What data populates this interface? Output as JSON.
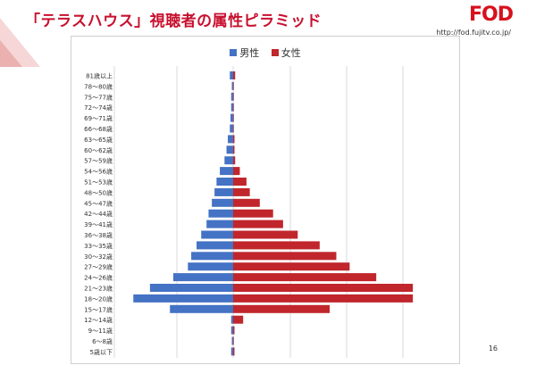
{
  "slide": {
    "title": "「テラスハウス」視聴者の属性ピラミッド",
    "logo_text": "FOD",
    "logo_url": "http://fod.fujitv.co.jp/",
    "page_number": "16"
  },
  "colors": {
    "male": "#4472c4",
    "female": "#c0262b",
    "title": "#c8102e",
    "gridline": "#d9d9d9"
  },
  "chart_data": {
    "type": "bar",
    "orientation": "horizontal-pyramid",
    "categories": [
      "81歳以上",
      "78〜80歳",
      "75〜77歳",
      "72〜74歳",
      "69〜71歳",
      "66〜68歳",
      "63〜65歳",
      "60〜62歳",
      "57〜59歳",
      "54〜56歳",
      "51〜53歳",
      "48〜50歳",
      "45〜47歳",
      "42〜44歳",
      "39〜41歳",
      "36〜38歳",
      "33〜35歳",
      "30〜32歳",
      "27〜29歳",
      "24〜26歳",
      "21〜23歳",
      "18〜20歳",
      "15〜17歳",
      "12〜14歳",
      "9〜11歳",
      "6〜8歳",
      "5歳以下"
    ],
    "series": [
      {
        "name": "男性",
        "values": [
          0.5,
          0.2,
          0.3,
          0.3,
          0.4,
          0.5,
          0.8,
          1.0,
          1.3,
          2.0,
          2.5,
          2.8,
          3.2,
          3.7,
          4.0,
          4.8,
          5.5,
          6.3,
          6.8,
          9.0,
          12.5,
          15.0,
          9.5,
          0.3,
          0.3,
          0.2,
          0.3
        ]
      },
      {
        "name": "女性",
        "values": [
          0.3,
          0.1,
          0.1,
          0.1,
          0.1,
          0.1,
          0.2,
          0.2,
          0.3,
          1.0,
          2.0,
          2.5,
          4.0,
          6.0,
          7.5,
          9.7,
          13.0,
          15.5,
          17.5,
          21.5,
          27.0,
          27.0,
          14.5,
          1.5,
          0.2,
          0.1,
          0.2
        ]
      }
    ],
    "legend_position": "top-center",
    "grid": true
  }
}
